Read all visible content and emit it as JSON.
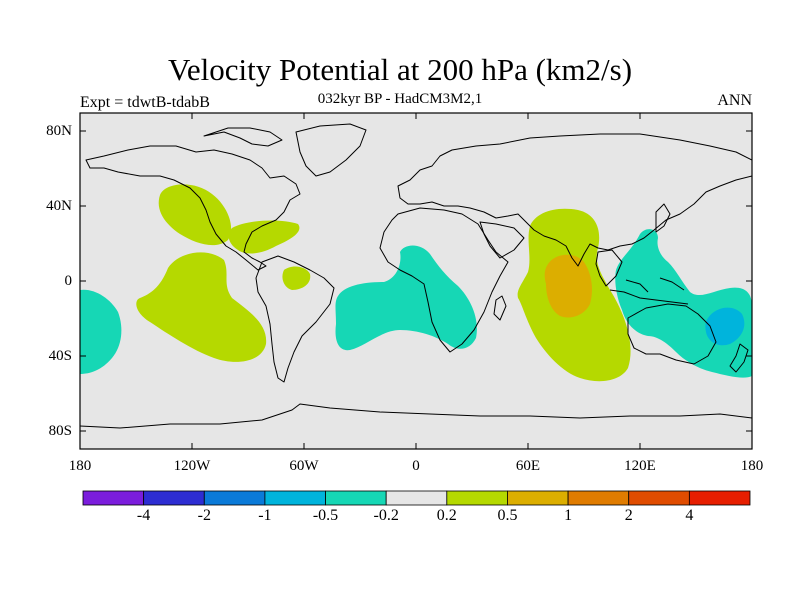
{
  "title": "Velocity Potential at 200 hPa (km2/s)",
  "subtitle": "032kyr BP - HadCM3M2,1",
  "left_label": "Expt = tdwtB-tdabB",
  "right_label": "ANN",
  "map": {
    "type": "filled-contour-map",
    "projection": "cylindrical-equidistant",
    "lon_range": [
      -180,
      180
    ],
    "lat_range": [
      -90,
      90
    ],
    "background_color": "#e6e6e6",
    "y_ticks": [
      "80N",
      "40N",
      "0",
      "40S",
      "80S"
    ],
    "x_ticks": [
      "180",
      "120W",
      "60W",
      "0",
      "60E",
      "120E",
      "180"
    ]
  },
  "colorbar": {
    "colors": [
      "#7b1ddc",
      "#2d2dd2",
      "#0a7ad8",
      "#00b4dc",
      "#16d7b5",
      "#e6e6e6",
      "#b5d900",
      "#dcae00",
      "#e07c00",
      "#e04c00",
      "#e61e00"
    ],
    "labels": [
      "-4",
      "-2",
      "-1",
      "-0.5",
      "-0.2",
      "0.2",
      "0.5",
      "1",
      "2",
      "4"
    ]
  }
}
